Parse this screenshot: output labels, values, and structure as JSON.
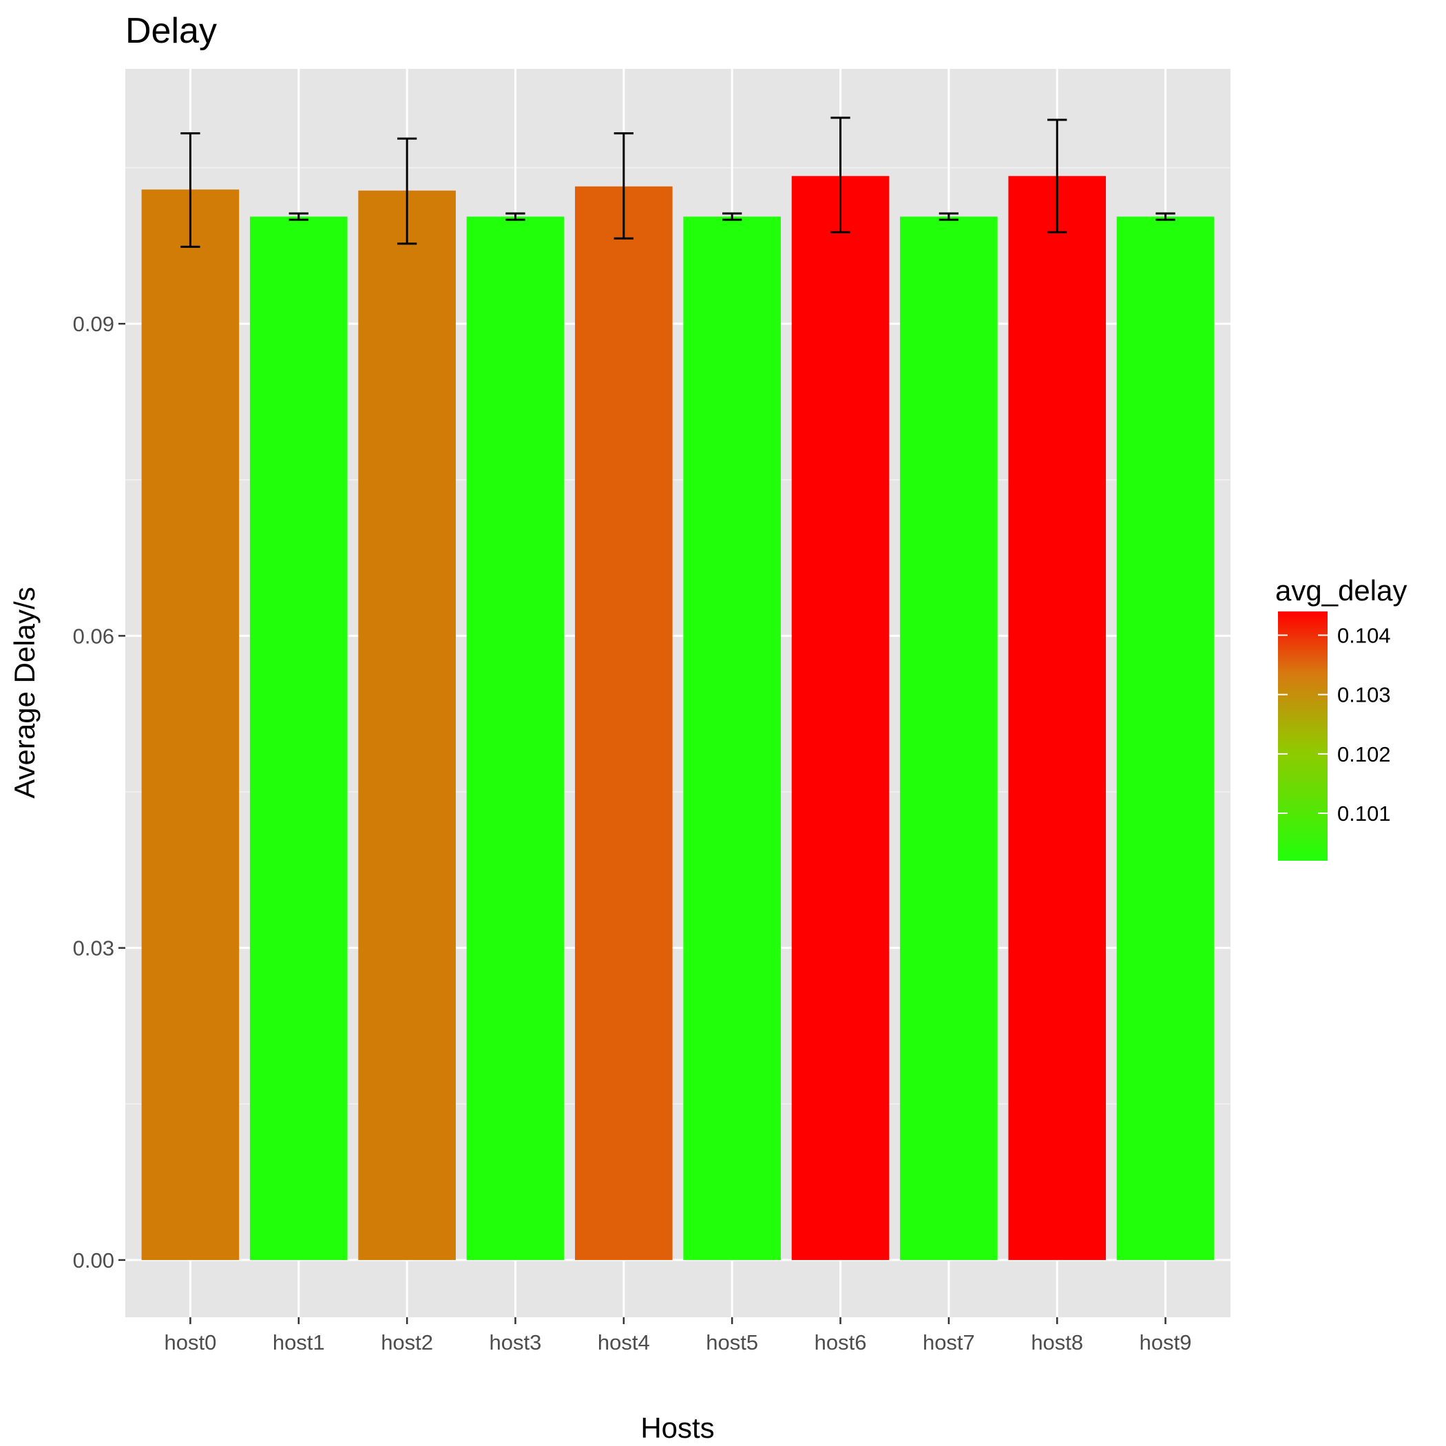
{
  "chart_data": {
    "type": "bar",
    "title": "Delay",
    "xlabel": "Hosts",
    "ylabel": "Average Delay/s",
    "categories": [
      "host0",
      "host1",
      "host2",
      "host3",
      "host4",
      "host5",
      "host6",
      "host7",
      "host8",
      "host9"
    ],
    "values": [
      0.1029,
      0.1003,
      0.1028,
      0.1003,
      0.1032,
      0.1003,
      0.1042,
      0.1003,
      0.1042,
      0.1003
    ],
    "error_low": [
      0.0974,
      0.1,
      0.0977,
      0.1,
      0.0982,
      0.1,
      0.0988,
      0.1,
      0.0988,
      0.1
    ],
    "error_high": [
      0.1083,
      0.1006,
      0.1078,
      0.1006,
      0.1083,
      0.1006,
      0.1098,
      0.1006,
      0.1096,
      0.1006
    ],
    "colors": [
      "#d17c07",
      "#22ff0a",
      "#d17c07",
      "#22ff0a",
      "#e0600a",
      "#22ff0a",
      "#ff0000",
      "#22ff0a",
      "#ff0000",
      "#22ff0a"
    ],
    "ylim": [
      -0.0055,
      0.1145
    ],
    "yticks": [
      0.0,
      0.03,
      0.06,
      0.09
    ],
    "ytick_labels": [
      "0.00",
      "0.03",
      "0.06",
      "0.09"
    ],
    "grid": true,
    "legend": {
      "title": "avg_delay",
      "placement": "right",
      "type": "colorbar",
      "range": [
        0.1002,
        0.1044
      ],
      "color_low": "#22ff0a",
      "color_high": "#ff0000",
      "ticks": [
        0.101,
        0.102,
        0.103,
        0.104
      ],
      "tick_labels": [
        "0.101",
        "0.102",
        "0.103",
        "0.104"
      ]
    }
  }
}
